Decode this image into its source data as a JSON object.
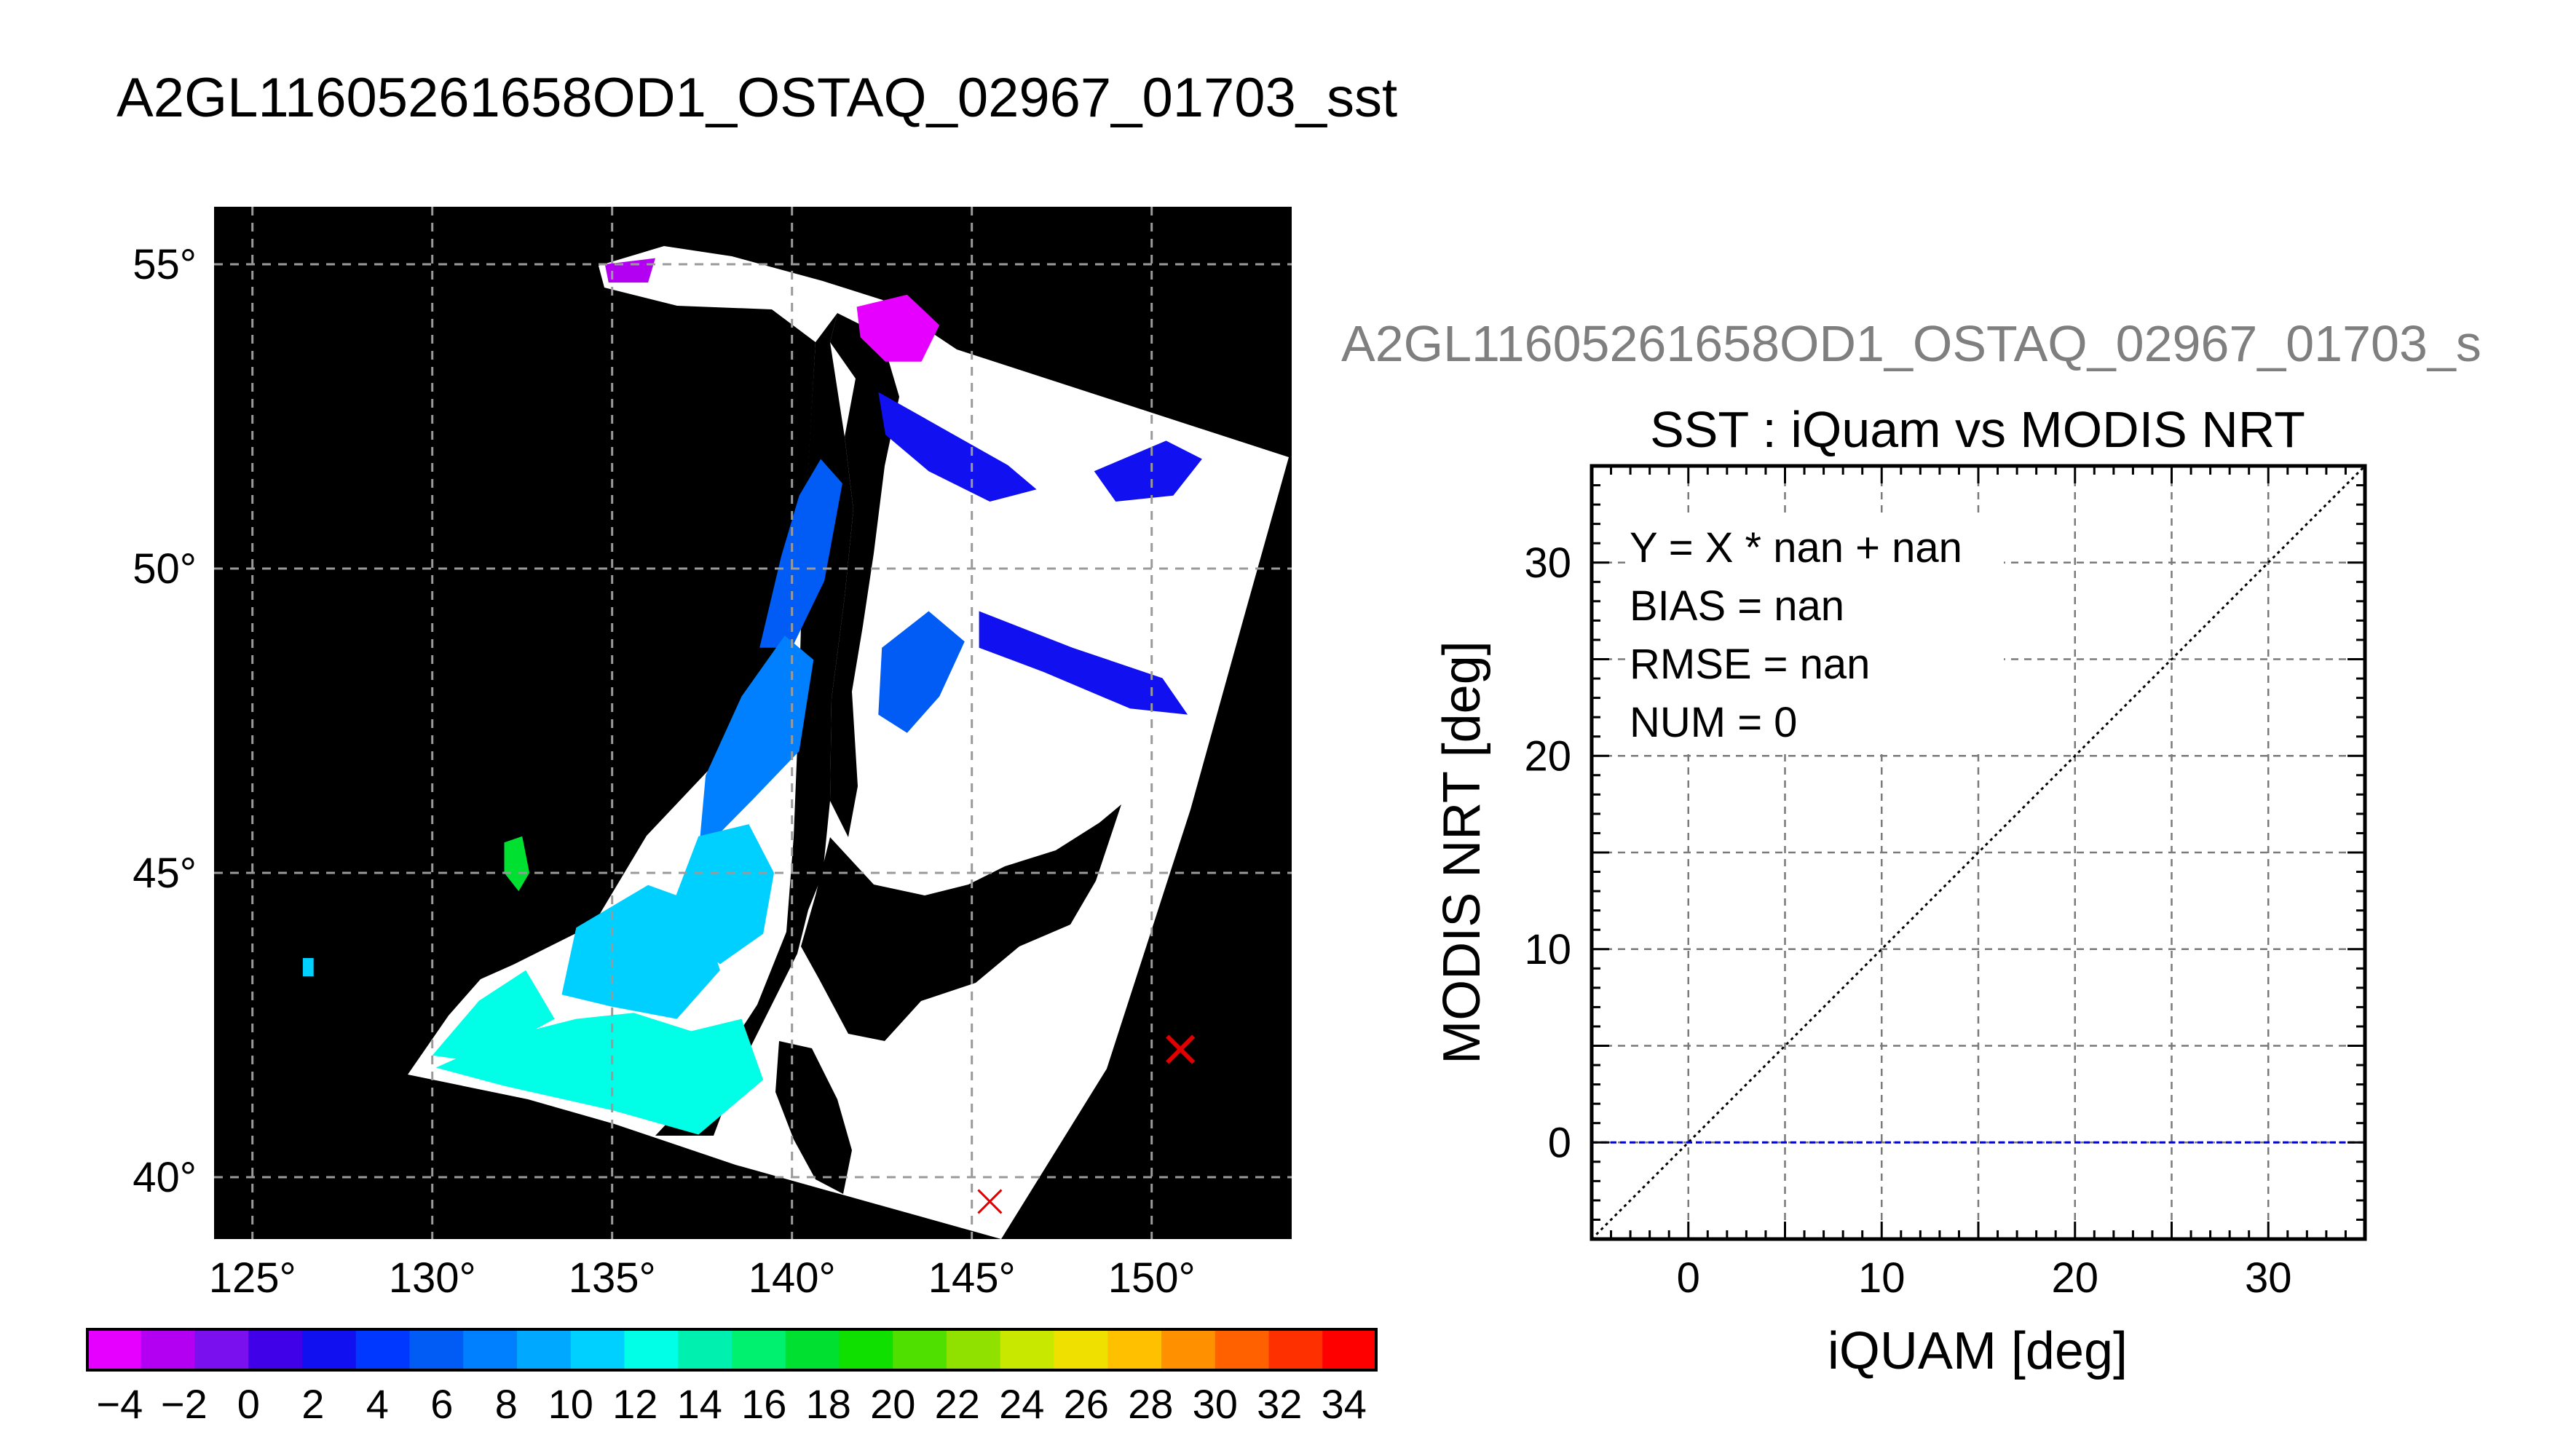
{
  "page": {
    "title": "A2GL11605261658OD1_OSTAQ_02967_01703_sst"
  },
  "map": {
    "lon_ticks": [
      125,
      130,
      135,
      140,
      145,
      150
    ],
    "lat_ticks": [
      40,
      45,
      50,
      55
    ],
    "degree_symbol": "°",
    "colors": {
      "background": "#000000",
      "cloud_mask": "#ffffff",
      "grid": "#9a9a9a",
      "marker": "#e00000"
    },
    "markers": [
      {
        "name": "match-marker-1",
        "lon": 150.8,
        "lat": 42.1,
        "size": "large"
      },
      {
        "name": "match-marker-2",
        "lon": 145.5,
        "lat": 39.6,
        "size": "small"
      }
    ],
    "sst_patches": [
      {
        "name": "okhotsk-north-cold",
        "value": -4,
        "poly": [
          [
            141.8,
            54.3
          ],
          [
            143.2,
            54.5
          ],
          [
            144.1,
            54.0
          ],
          [
            143.6,
            53.4
          ],
          [
            142.6,
            53.4
          ],
          [
            141.9,
            53.8
          ]
        ]
      },
      {
        "name": "okhotsk-north-cold-2",
        "value": -2,
        "poly": [
          [
            134.8,
            55.0
          ],
          [
            136.2,
            55.1
          ],
          [
            136.0,
            54.7
          ],
          [
            134.9,
            54.7
          ]
        ]
      },
      {
        "name": "okhotsk-east-band",
        "value": 2,
        "poly": [
          [
            142.4,
            52.9
          ],
          [
            144.2,
            52.3
          ],
          [
            146.0,
            51.7
          ],
          [
            146.8,
            51.3
          ],
          [
            145.5,
            51.1
          ],
          [
            143.8,
            51.6
          ],
          [
            142.6,
            52.2
          ]
        ]
      },
      {
        "name": "okhotsk-east-far",
        "value": 2,
        "poly": [
          [
            148.4,
            51.6
          ],
          [
            150.4,
            52.1
          ],
          [
            151.4,
            51.8
          ],
          [
            150.6,
            51.2
          ],
          [
            149.0,
            51.1
          ]
        ]
      },
      {
        "name": "okhotsk-south-band",
        "value": 2,
        "poly": [
          [
            145.2,
            49.3
          ],
          [
            147.8,
            48.7
          ],
          [
            150.3,
            48.2
          ],
          [
            151.0,
            47.6
          ],
          [
            149.4,
            47.7
          ],
          [
            147.0,
            48.3
          ],
          [
            145.2,
            48.7
          ]
        ]
      },
      {
        "name": "tatar-north",
        "value": 5,
        "poly": [
          [
            140.8,
            51.8
          ],
          [
            141.4,
            51.4
          ],
          [
            140.9,
            49.8
          ],
          [
            140.0,
            48.7
          ],
          [
            139.1,
            48.7
          ],
          [
            139.7,
            50.2
          ],
          [
            140.2,
            51.2
          ]
        ]
      },
      {
        "name": "aniva-gulf",
        "value": 6,
        "poly": [
          [
            142.5,
            48.7
          ],
          [
            143.8,
            49.3
          ],
          [
            144.8,
            48.8
          ],
          [
            144.1,
            47.9
          ],
          [
            143.2,
            47.3
          ],
          [
            142.4,
            47.6
          ]
        ]
      },
      {
        "name": "tatar-mid",
        "value": 8,
        "poly": [
          [
            139.8,
            48.9
          ],
          [
            140.6,
            48.5
          ],
          [
            140.2,
            47.0
          ],
          [
            138.9,
            46.2
          ],
          [
            137.4,
            45.3
          ],
          [
            137.6,
            46.6
          ],
          [
            138.6,
            47.9
          ]
        ]
      },
      {
        "name": "japan-sea-north",
        "value": 10,
        "poly": [
          [
            137.4,
            45.6
          ],
          [
            138.8,
            45.8
          ],
          [
            139.5,
            45.0
          ],
          [
            139.2,
            44.0
          ],
          [
            138.0,
            43.5
          ],
          [
            136.5,
            44.2
          ]
        ]
      },
      {
        "name": "japan-sea-mid",
        "value": 11,
        "poly": [
          [
            134.0,
            44.1
          ],
          [
            136.0,
            44.8
          ],
          [
            137.4,
            44.5
          ],
          [
            138.0,
            43.4
          ],
          [
            136.8,
            42.6
          ],
          [
            135.0,
            42.8
          ],
          [
            133.6,
            43.0
          ]
        ]
      },
      {
        "name": "japan-sea-south",
        "value": 12,
        "poly": [
          [
            130.1,
            41.8
          ],
          [
            132.0,
            42.3
          ],
          [
            134.0,
            42.6
          ],
          [
            135.6,
            42.7
          ],
          [
            137.2,
            42.4
          ],
          [
            138.6,
            42.6
          ],
          [
            139.2,
            41.6
          ],
          [
            137.4,
            40.7
          ],
          [
            135.0,
            41.1
          ],
          [
            132.0,
            41.5
          ]
        ]
      },
      {
        "name": "coast-korea",
        "value": 13,
        "poly": [
          [
            130.0,
            42.0
          ],
          [
            131.3,
            42.9
          ],
          [
            132.6,
            43.4
          ],
          [
            133.4,
            42.6
          ],
          [
            131.2,
            41.9
          ]
        ]
      },
      {
        "name": "ulleung-island",
        "value": 18,
        "poly": [
          [
            132.0,
            45.5
          ],
          [
            132.5,
            45.6
          ],
          [
            132.7,
            45.0
          ],
          [
            132.4,
            44.7
          ],
          [
            132.0,
            45.0
          ]
        ]
      },
      {
        "name": "small-patch-west",
        "value": 11,
        "poly": [
          [
            126.4,
            43.6
          ],
          [
            126.7,
            43.6
          ],
          [
            126.7,
            43.3
          ],
          [
            126.4,
            43.3
          ]
        ]
      }
    ]
  },
  "colorbar": {
    "tick_labels": [
      "−4",
      "−2",
      "0",
      "2",
      "4",
      "6",
      "8",
      "10",
      "12",
      "14",
      "16",
      "18",
      "20",
      "22",
      "24",
      "26",
      "28",
      "30",
      "32",
      "34"
    ],
    "colors": [
      "#e600ff",
      "#b300f2",
      "#7a10ee",
      "#4000e8",
      "#1010f0",
      "#0038ff",
      "#005cf5",
      "#0080ff",
      "#00a8ff",
      "#00d0ff",
      "#00ffe6",
      "#00f0b0",
      "#00f070",
      "#00e030",
      "#10e000",
      "#50e000",
      "#90e000",
      "#c8e800",
      "#f0e000",
      "#ffc000",
      "#ff9000",
      "#ff6000",
      "#ff3000",
      "#ff0000"
    ]
  },
  "chart_data": {
    "type": "scatter",
    "header": "A2GL11605261658OD1_OSTAQ_02967_01703_s",
    "title": "SST : iQuam vs MODIS NRT",
    "xlabel": "iQUAM [deg]",
    "ylabel": "MODIS NRT [deg]",
    "xlim": [
      -5,
      35
    ],
    "ylim": [
      -5,
      35
    ],
    "x_ticks": [
      0,
      10,
      20,
      30
    ],
    "y_ticks": [
      0,
      10,
      20,
      30
    ],
    "grid": true,
    "series": [],
    "reference_lines": [
      {
        "name": "one-to-one-line",
        "style": "dotted",
        "color": "#000000",
        "slope": 1,
        "intercept": 0
      },
      {
        "name": "zero-line",
        "style": "dashed",
        "color": "#0000cc",
        "y": 0
      }
    ],
    "stats": [
      "Y = X * nan + nan",
      "BIAS = nan",
      "RMSE = nan",
      "NUM = 0"
    ]
  }
}
